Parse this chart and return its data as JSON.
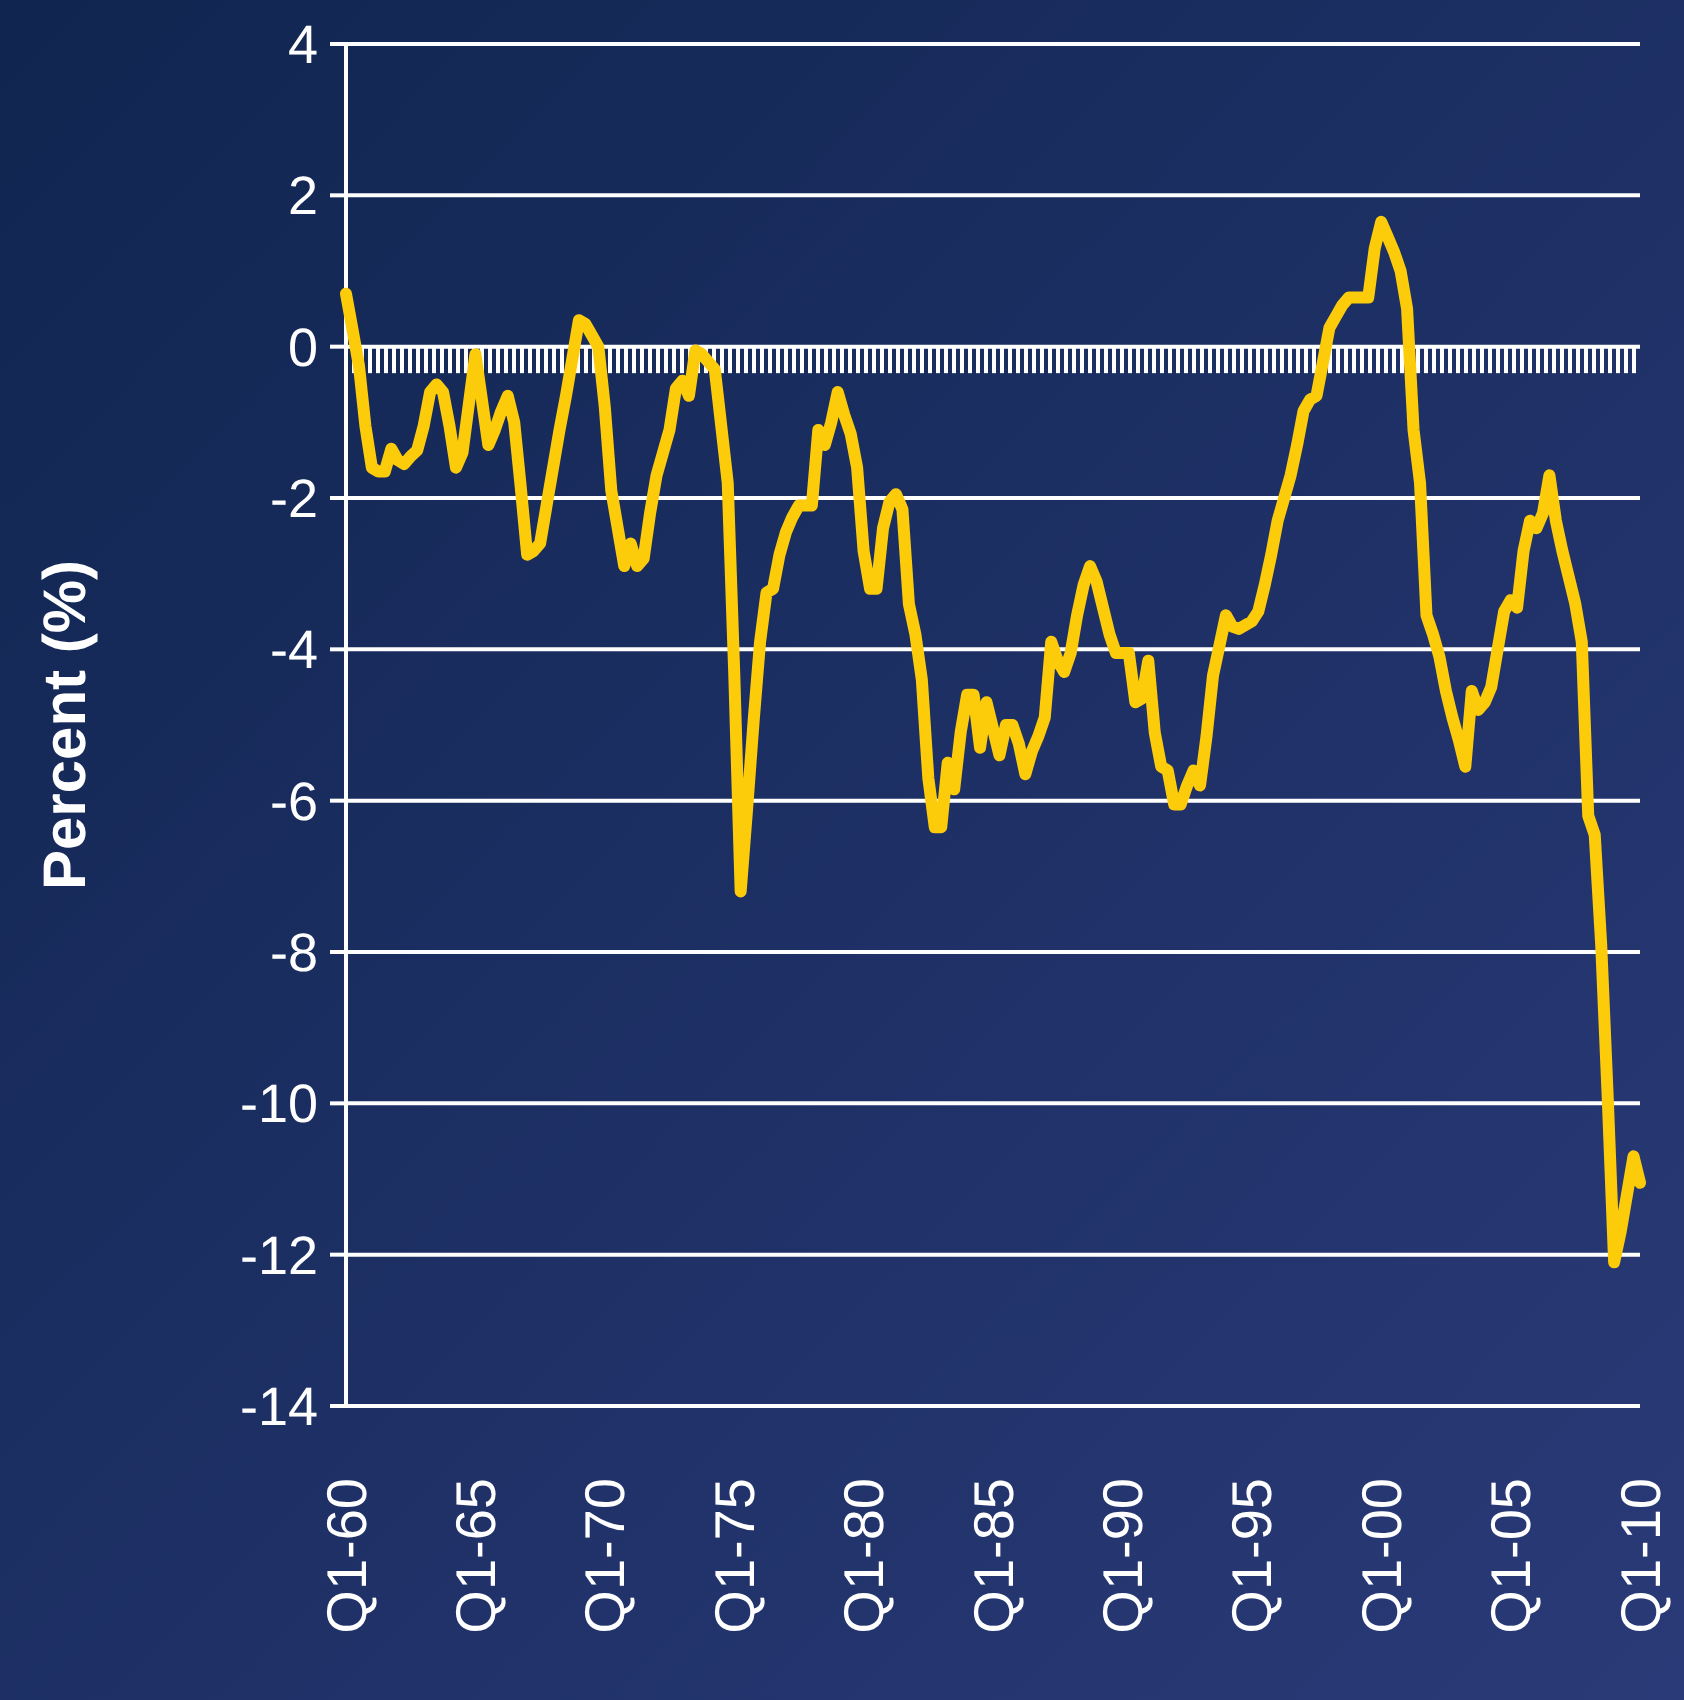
{
  "chart_data": {
    "type": "line",
    "ylabel": "Percent (%)",
    "categories": [
      "Q1-60",
      null,
      null,
      null,
      null,
      null,
      null,
      null,
      null,
      null,
      null,
      null,
      null,
      null,
      null,
      null,
      null,
      null,
      null,
      null,
      "Q1-65",
      null,
      null,
      null,
      null,
      null,
      null,
      null,
      null,
      null,
      null,
      null,
      null,
      null,
      null,
      null,
      null,
      null,
      null,
      null,
      "Q1-70",
      null,
      null,
      null,
      null,
      null,
      null,
      null,
      null,
      null,
      null,
      null,
      null,
      null,
      null,
      null,
      null,
      null,
      null,
      null,
      "Q1-75",
      null,
      null,
      null,
      null,
      null,
      null,
      null,
      null,
      null,
      null,
      null,
      null,
      null,
      null,
      null,
      null,
      null,
      null,
      null,
      "Q1-80",
      null,
      null,
      null,
      null,
      null,
      null,
      null,
      null,
      null,
      null,
      null,
      null,
      null,
      null,
      null,
      null,
      null,
      null,
      null,
      "Q1-85",
      null,
      null,
      null,
      null,
      null,
      null,
      null,
      null,
      null,
      null,
      null,
      null,
      null,
      null,
      null,
      null,
      null,
      null,
      null,
      "Q1-90",
      null,
      null,
      null,
      null,
      null,
      null,
      null,
      null,
      null,
      null,
      null,
      null,
      null,
      null,
      null,
      null,
      null,
      null,
      null,
      "Q1-95",
      null,
      null,
      null,
      null,
      null,
      null,
      null,
      null,
      null,
      null,
      null,
      null,
      null,
      null,
      null,
      null,
      null,
      null,
      null,
      "Q1-00",
      null,
      null,
      null,
      null,
      null,
      null,
      null,
      null,
      null,
      null,
      null,
      null,
      null,
      null,
      null,
      null,
      null,
      null,
      null,
      "Q1-05",
      null,
      null,
      null,
      null,
      null,
      null,
      null,
      null,
      null,
      null,
      null,
      null,
      null,
      null,
      null,
      null,
      null,
      null,
      null,
      "Q1-10"
    ],
    "ylim": [
      -14,
      4
    ],
    "yticks": [
      -14,
      -12,
      -10,
      -8,
      -6,
      -4,
      -2,
      0,
      2,
      4
    ],
    "grid": "y",
    "marker": "none",
    "line_style": "solid",
    "bands": [
      {
        "axis": "y",
        "from": -0.35,
        "to": 0,
        "color": "#ffffff"
      }
    ],
    "series": [
      {
        "color": "#fccc0a",
        "values": [
          0.7,
          0.23,
          -0.25,
          -1.05,
          -1.6,
          -1.65,
          -1.65,
          -1.35,
          -1.5,
          -1.55,
          -1.45,
          -1.37,
          -1.05,
          -0.6,
          -0.5,
          -0.6,
          -1.05,
          -1.6,
          -1.4,
          -0.75,
          -0.1,
          -0.7,
          -1.3,
          -1.1,
          -0.85,
          -0.65,
          -1.0,
          -1.85,
          -2.75,
          -2.7,
          -2.6,
          -2.1,
          -1.6,
          -1.1,
          -0.65,
          -0.15,
          0.35,
          0.3,
          0.15,
          0.0,
          -0.8,
          -1.9,
          -2.4,
          -2.9,
          -2.6,
          -2.9,
          -2.8,
          -2.2,
          -1.7,
          -1.4,
          -1.1,
          -0.55,
          -0.45,
          -0.65,
          -0.05,
          -0.1,
          -0.2,
          -0.3,
          -1.05,
          -1.8,
          -4.3,
          -7.2,
          -6.1,
          -4.95,
          -3.9,
          -3.25,
          -3.2,
          -2.75,
          -2.45,
          -2.25,
          -2.1,
          -2.1,
          -2.1,
          -1.1,
          -1.3,
          -1.0,
          -0.6,
          -0.9,
          -1.15,
          -1.6,
          -2.7,
          -3.2,
          -3.2,
          -2.4,
          -2.05,
          -1.95,
          -2.15,
          -3.4,
          -3.8,
          -4.4,
          -5.7,
          -6.35,
          -6.35,
          -5.5,
          -5.85,
          -5.1,
          -4.6,
          -4.6,
          -5.3,
          -4.7,
          -5.05,
          -5.4,
          -5.0,
          -5.0,
          -5.25,
          -5.65,
          -5.35,
          -5.15,
          -4.9,
          -3.9,
          -4.15,
          -4.3,
          -4.05,
          -3.55,
          -3.15,
          -2.9,
          -3.1,
          -3.45,
          -3.8,
          -4.05,
          -4.05,
          -4.05,
          -4.7,
          -4.65,
          -4.15,
          -5.1,
          -5.55,
          -5.6,
          -6.05,
          -6.05,
          -5.8,
          -5.6,
          -5.8,
          -5.15,
          -4.35,
          -3.95,
          -3.55,
          -3.7,
          -3.73,
          -3.68,
          -3.63,
          -3.5,
          -3.15,
          -2.75,
          -2.3,
          -2.0,
          -1.7,
          -1.3,
          -0.85,
          -0.7,
          -0.65,
          -0.2,
          0.25,
          0.4,
          0.55,
          0.65,
          0.65,
          0.65,
          0.65,
          1.3,
          1.65,
          1.45,
          1.25,
          1.0,
          0.5,
          -1.1,
          -1.8,
          -3.55,
          -3.8,
          -4.1,
          -4.55,
          -4.9,
          -5.2,
          -5.55,
          -4.55,
          -4.8,
          -4.7,
          -4.5,
          -4.0,
          -3.5,
          -3.35,
          -3.45,
          -2.7,
          -2.3,
          -2.4,
          -2.2,
          -1.7,
          -2.3,
          -2.7,
          -3.05,
          -3.4,
          -3.9,
          -6.2,
          -6.45,
          -7.9,
          -9.9,
          -12.1,
          -11.7,
          -11.2,
          -10.7,
          -11.05
        ]
      }
    ]
  }
}
